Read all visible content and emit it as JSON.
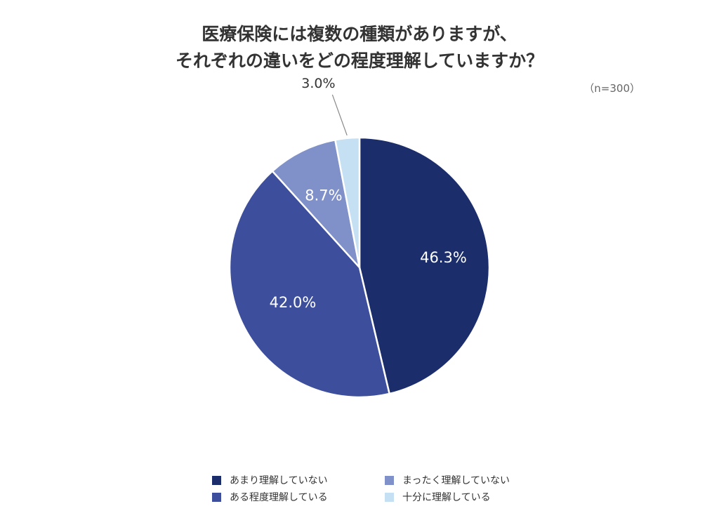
{
  "chart_data": {
    "type": "pie",
    "title_lines": [
      "医療保険には複数の種類がありますが、",
      "それぞれの違いをどの程度理解していますか？"
    ],
    "sample_note": "（n=300）",
    "slices": [
      {
        "label": "あまり理解していない",
        "value": 46.3,
        "display": "46.3%",
        "color": "#1b2d6b",
        "label_color": "#ffffff"
      },
      {
        "label": "ある程度理解している",
        "value": 42.0,
        "display": "42.0%",
        "color": "#3d4f9c",
        "label_color": "#ffffff"
      },
      {
        "label": "まったく理解していない",
        "value": 8.7,
        "display": "8.7%",
        "color": "#8091c9",
        "label_color": "#ffffff"
      },
      {
        "label": "十分に理解している",
        "value": 3.0,
        "display": "3.0%",
        "color": "#c6e0f3",
        "label_color": "#333333"
      }
    ],
    "start_angle_deg": 0,
    "direction": "clockwise",
    "legend_position": "bottom"
  }
}
